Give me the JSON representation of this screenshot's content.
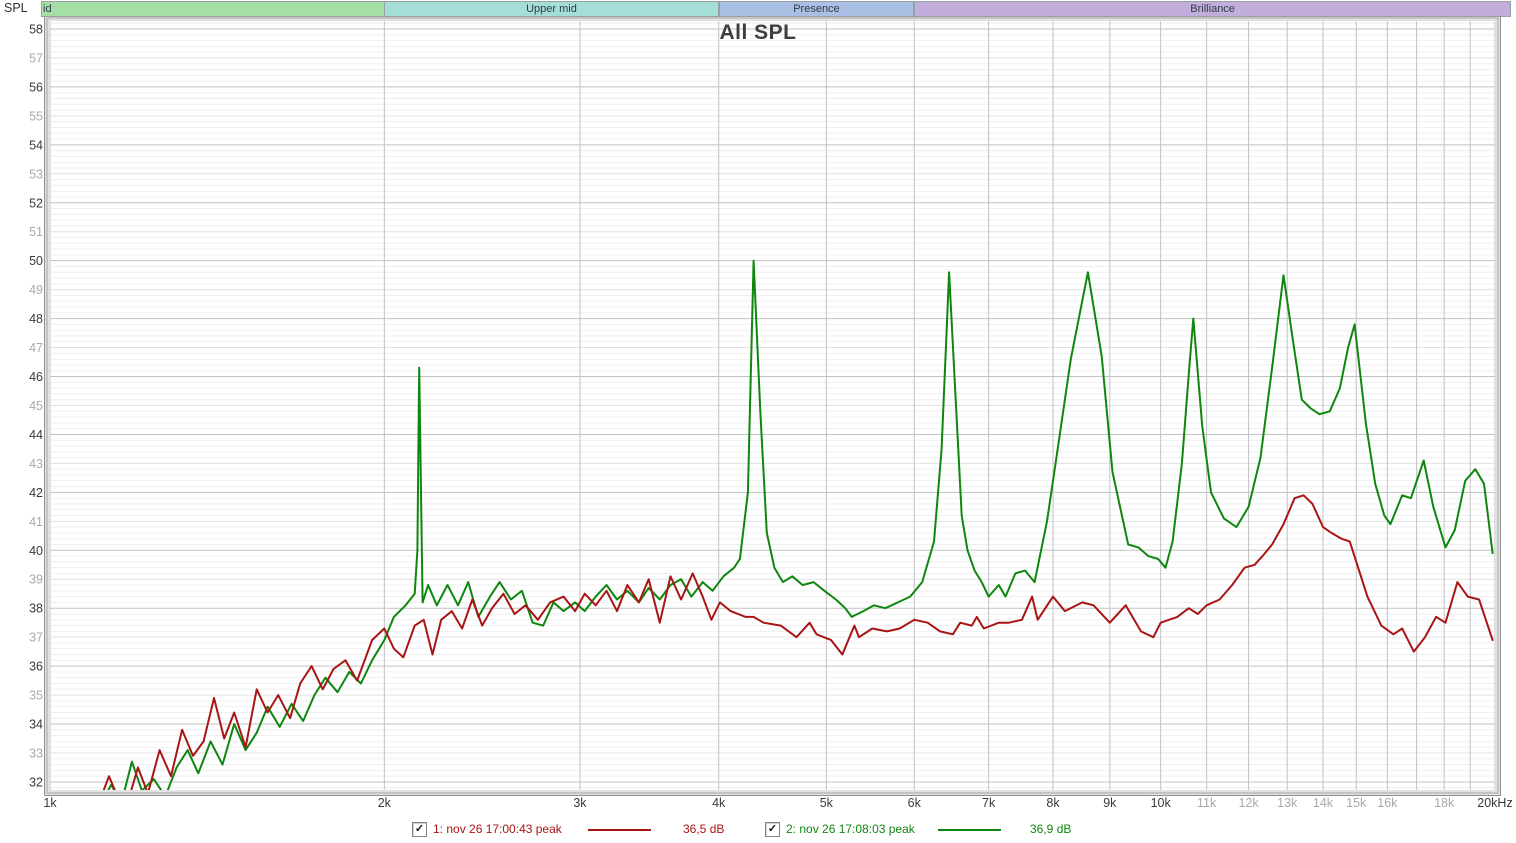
{
  "y_axis_name": "SPL",
  "bands": [
    {
      "label": "id",
      "from_hz": 1000,
      "to_hz": 2000,
      "color": "#a6dfa6",
      "label_align": "left"
    },
    {
      "label": "Upper mid",
      "from_hz": 2000,
      "to_hz": 4000,
      "color": "#a5ded7",
      "label_align": "center"
    },
    {
      "label": "Presence",
      "from_hz": 4000,
      "to_hz": 6000,
      "color": "#a9bfe3",
      "label_align": "center"
    },
    {
      "label": "Brilliance",
      "from_hz": 6000,
      "to_hz": 20000,
      "color": "#c2aedd",
      "label_align": "center"
    }
  ],
  "legend": {
    "check_glyph": "✓",
    "items": [
      {
        "checked": true,
        "label": "1: nov 26 17:00:43 peak",
        "value": "36,5 dB",
        "color": "#a91515"
      },
      {
        "checked": true,
        "label": "2: nov 26 17:08:03 peak",
        "value": "36,9 dB",
        "color": "#0e870e"
      }
    ]
  },
  "chart_data": {
    "type": "line",
    "title": "All SPL",
    "x_scale": "log",
    "x_unit": "Hz",
    "y_unit": "dB SPL",
    "x_range": [
      1000,
      20000
    ],
    "y_range": [
      31.7,
      58.3
    ],
    "grid": {
      "minor_step_db": 0.2,
      "minor_db_color": "#efefef",
      "odd_db_color": "#e0e0e0",
      "even_db_color": "#c2c2c2",
      "vline_color": "#c2c2c2"
    },
    "axis_label_color": "#3a3a3a",
    "axis_label_dim_color": "#a9a9a9",
    "y_ticks_db": {
      "from": 32,
      "to": 58,
      "step": 1
    },
    "x_ticks": [
      {
        "hz": 1000,
        "label": "1k",
        "dim": false
      },
      {
        "hz": 2000,
        "label": "2k",
        "dim": false
      },
      {
        "hz": 3000,
        "label": "3k",
        "dim": false
      },
      {
        "hz": 4000,
        "label": "4k",
        "dim": false
      },
      {
        "hz": 5000,
        "label": "5k",
        "dim": false
      },
      {
        "hz": 6000,
        "label": "6k",
        "dim": false
      },
      {
        "hz": 7000,
        "label": "7k",
        "dim": false
      },
      {
        "hz": 8000,
        "label": "8k",
        "dim": false
      },
      {
        "hz": 9000,
        "label": "9k",
        "dim": false
      },
      {
        "hz": 10000,
        "label": "10k",
        "dim": false
      },
      {
        "hz": 11000,
        "label": "11k",
        "dim": true
      },
      {
        "hz": 12000,
        "label": "12k",
        "dim": true
      },
      {
        "hz": 13000,
        "label": "13k",
        "dim": true
      },
      {
        "hz": 14000,
        "label": "14k",
        "dim": true
      },
      {
        "hz": 15000,
        "label": "15k",
        "dim": true
      },
      {
        "hz": 16000,
        "label": "16k",
        "dim": true
      },
      {
        "hz": 17000,
        "label": "",
        "dim": true
      },
      {
        "hz": 18000,
        "label": "18k",
        "dim": true
      },
      {
        "hz": 19000,
        "label": "",
        "dim": true
      },
      {
        "hz": 20000,
        "label": "20kHz",
        "dim": false
      }
    ],
    "series": [
      {
        "name": "1: nov 26 17:00:43 peak",
        "color": "#a91515",
        "points": [
          [
            1110,
            31.4
          ],
          [
            1130,
            32.2
          ],
          [
            1150,
            31.5
          ],
          [
            1175,
            31.3
          ],
          [
            1200,
            32.5
          ],
          [
            1225,
            31.6
          ],
          [
            1255,
            33.1
          ],
          [
            1285,
            32.2
          ],
          [
            1315,
            33.8
          ],
          [
            1345,
            32.9
          ],
          [
            1375,
            33.4
          ],
          [
            1405,
            34.9
          ],
          [
            1435,
            33.5
          ],
          [
            1465,
            34.4
          ],
          [
            1500,
            33.2
          ],
          [
            1535,
            35.2
          ],
          [
            1570,
            34.4
          ],
          [
            1605,
            35.0
          ],
          [
            1645,
            34.2
          ],
          [
            1680,
            35.4
          ],
          [
            1720,
            36.0
          ],
          [
            1760,
            35.2
          ],
          [
            1800,
            35.9
          ],
          [
            1845,
            36.2
          ],
          [
            1890,
            35.5
          ],
          [
            1950,
            36.9
          ],
          [
            2000,
            37.3
          ],
          [
            2040,
            36.6
          ],
          [
            2080,
            36.3
          ],
          [
            2130,
            37.4
          ],
          [
            2170,
            37.6
          ],
          [
            2210,
            36.4
          ],
          [
            2250,
            37.6
          ],
          [
            2300,
            37.9
          ],
          [
            2350,
            37.3
          ],
          [
            2400,
            38.3
          ],
          [
            2450,
            37.4
          ],
          [
            2500,
            38.0
          ],
          [
            2560,
            38.5
          ],
          [
            2620,
            37.8
          ],
          [
            2680,
            38.1
          ],
          [
            2750,
            37.6
          ],
          [
            2820,
            38.2
          ],
          [
            2900,
            38.4
          ],
          [
            2970,
            37.9
          ],
          [
            3030,
            38.5
          ],
          [
            3100,
            38.1
          ],
          [
            3170,
            38.6
          ],
          [
            3240,
            37.9
          ],
          [
            3310,
            38.8
          ],
          [
            3390,
            38.2
          ],
          [
            3460,
            39.0
          ],
          [
            3540,
            37.5
          ],
          [
            3620,
            39.1
          ],
          [
            3700,
            38.3
          ],
          [
            3790,
            39.2
          ],
          [
            3870,
            38.4
          ],
          [
            3940,
            37.6
          ],
          [
            4010,
            38.2
          ],
          [
            4100,
            37.9
          ],
          [
            4230,
            37.7
          ],
          [
            4300,
            37.7
          ],
          [
            4390,
            37.5
          ],
          [
            4550,
            37.4
          ],
          [
            4700,
            37.0
          ],
          [
            4830,
            37.5
          ],
          [
            4900,
            37.1
          ],
          [
            5050,
            36.9
          ],
          [
            5170,
            36.4
          ],
          [
            5220,
            36.8
          ],
          [
            5300,
            37.4
          ],
          [
            5350,
            37.0
          ],
          [
            5500,
            37.3
          ],
          [
            5670,
            37.2
          ],
          [
            5820,
            37.3
          ],
          [
            6000,
            37.6
          ],
          [
            6170,
            37.5
          ],
          [
            6330,
            37.2
          ],
          [
            6500,
            37.1
          ],
          [
            6600,
            37.5
          ],
          [
            6760,
            37.4
          ],
          [
            6830,
            37.7
          ],
          [
            6930,
            37.3
          ],
          [
            7150,
            37.5
          ],
          [
            7300,
            37.5
          ],
          [
            7500,
            37.6
          ],
          [
            7660,
            38.4
          ],
          [
            7750,
            37.6
          ],
          [
            8000,
            38.4
          ],
          [
            8200,
            37.9
          ],
          [
            8500,
            38.2
          ],
          [
            8700,
            38.1
          ],
          [
            9000,
            37.5
          ],
          [
            9300,
            38.1
          ],
          [
            9600,
            37.2
          ],
          [
            9850,
            37.0
          ],
          [
            10000,
            37.5
          ],
          [
            10350,
            37.7
          ],
          [
            10600,
            38.0
          ],
          [
            10800,
            37.8
          ],
          [
            11000,
            38.1
          ],
          [
            11300,
            38.3
          ],
          [
            11600,
            38.8
          ],
          [
            11900,
            39.4
          ],
          [
            12150,
            39.5
          ],
          [
            12350,
            39.8
          ],
          [
            12600,
            40.2
          ],
          [
            12900,
            40.9
          ],
          [
            13200,
            41.8
          ],
          [
            13450,
            41.9
          ],
          [
            13700,
            41.6
          ],
          [
            14000,
            40.8
          ],
          [
            14250,
            40.6
          ],
          [
            14550,
            40.4
          ],
          [
            14800,
            40.3
          ],
          [
            15350,
            38.4
          ],
          [
            15800,
            37.4
          ],
          [
            16200,
            37.1
          ],
          [
            16500,
            37.3
          ],
          [
            16900,
            36.5
          ],
          [
            17300,
            37.0
          ],
          [
            17700,
            37.7
          ],
          [
            18050,
            37.5
          ],
          [
            18500,
            38.9
          ],
          [
            18900,
            38.4
          ],
          [
            19350,
            38.3
          ],
          [
            19900,
            36.9
          ]
        ]
      },
      {
        "name": "2: nov 26 17:08:03 peak",
        "color": "#0e870e",
        "points": [
          [
            1110,
            31.2
          ],
          [
            1135,
            31.9
          ],
          [
            1160,
            31.3
          ],
          [
            1185,
            32.7
          ],
          [
            1210,
            31.7
          ],
          [
            1240,
            32.1
          ],
          [
            1270,
            31.5
          ],
          [
            1300,
            32.5
          ],
          [
            1330,
            33.1
          ],
          [
            1360,
            32.3
          ],
          [
            1395,
            33.4
          ],
          [
            1430,
            32.6
          ],
          [
            1465,
            34.0
          ],
          [
            1500,
            33.1
          ],
          [
            1535,
            33.7
          ],
          [
            1570,
            34.6
          ],
          [
            1610,
            33.9
          ],
          [
            1650,
            34.7
          ],
          [
            1690,
            34.1
          ],
          [
            1730,
            35.0
          ],
          [
            1770,
            35.6
          ],
          [
            1815,
            35.1
          ],
          [
            1860,
            35.8
          ],
          [
            1905,
            35.4
          ],
          [
            1950,
            36.2
          ],
          [
            2000,
            36.9
          ],
          [
            2040,
            37.7
          ],
          [
            2090,
            38.1
          ],
          [
            2130,
            38.5
          ],
          [
            2142,
            40.0
          ],
          [
            2150,
            46.3
          ],
          [
            2165,
            38.2
          ],
          [
            2190,
            38.8
          ],
          [
            2230,
            38.1
          ],
          [
            2280,
            38.8
          ],
          [
            2330,
            38.1
          ],
          [
            2380,
            38.9
          ],
          [
            2430,
            37.7
          ],
          [
            2490,
            38.4
          ],
          [
            2540,
            38.9
          ],
          [
            2600,
            38.3
          ],
          [
            2660,
            38.6
          ],
          [
            2720,
            37.5
          ],
          [
            2780,
            37.4
          ],
          [
            2840,
            38.2
          ],
          [
            2900,
            37.9
          ],
          [
            2970,
            38.2
          ],
          [
            3030,
            37.9
          ],
          [
            3100,
            38.4
          ],
          [
            3170,
            38.8
          ],
          [
            3240,
            38.3
          ],
          [
            3310,
            38.6
          ],
          [
            3390,
            38.2
          ],
          [
            3460,
            38.7
          ],
          [
            3540,
            38.3
          ],
          [
            3620,
            38.8
          ],
          [
            3700,
            39.0
          ],
          [
            3780,
            38.4
          ],
          [
            3870,
            38.9
          ],
          [
            3950,
            38.6
          ],
          [
            4040,
            39.1
          ],
          [
            4130,
            39.4
          ],
          [
            4180,
            39.7
          ],
          [
            4250,
            42.0
          ],
          [
            4300,
            50.0
          ],
          [
            4360,
            44.8
          ],
          [
            4420,
            40.6
          ],
          [
            4490,
            39.4
          ],
          [
            4570,
            38.9
          ],
          [
            4660,
            39.1
          ],
          [
            4760,
            38.8
          ],
          [
            4870,
            38.9
          ],
          [
            4980,
            38.6
          ],
          [
            5100,
            38.3
          ],
          [
            5200,
            38.0
          ],
          [
            5270,
            37.7
          ],
          [
            5400,
            37.9
          ],
          [
            5520,
            38.1
          ],
          [
            5650,
            38.0
          ],
          [
            5800,
            38.2
          ],
          [
            5950,
            38.4
          ],
          [
            6100,
            38.9
          ],
          [
            6250,
            40.3
          ],
          [
            6350,
            43.5
          ],
          [
            6450,
            49.6
          ],
          [
            6550,
            44.6
          ],
          [
            6620,
            41.2
          ],
          [
            6700,
            40.0
          ],
          [
            6800,
            39.3
          ],
          [
            6900,
            38.9
          ],
          [
            7000,
            38.4
          ],
          [
            7150,
            38.8
          ],
          [
            7250,
            38.4
          ],
          [
            7400,
            39.2
          ],
          [
            7550,
            39.3
          ],
          [
            7700,
            38.9
          ],
          [
            7900,
            41.0
          ],
          [
            8050,
            43.1
          ],
          [
            8300,
            46.6
          ],
          [
            8600,
            49.6
          ],
          [
            8850,
            46.7
          ],
          [
            9050,
            42.7
          ],
          [
            9350,
            40.2
          ],
          [
            9550,
            40.1
          ],
          [
            9750,
            39.8
          ],
          [
            9950,
            39.7
          ],
          [
            10100,
            39.4
          ],
          [
            10250,
            40.3
          ],
          [
            10450,
            43.0
          ],
          [
            10600,
            46.1
          ],
          [
            10700,
            48.0
          ],
          [
            10900,
            44.3
          ],
          [
            11100,
            42.0
          ],
          [
            11400,
            41.1
          ],
          [
            11700,
            40.8
          ],
          [
            12000,
            41.5
          ],
          [
            12300,
            43.2
          ],
          [
            12600,
            46.3
          ],
          [
            12900,
            49.5
          ],
          [
            13150,
            47.3
          ],
          [
            13400,
            45.2
          ],
          [
            13650,
            44.9
          ],
          [
            13900,
            44.7
          ],
          [
            14200,
            44.8
          ],
          [
            14500,
            45.6
          ],
          [
            14750,
            47.0
          ],
          [
            14950,
            47.8
          ],
          [
            15300,
            44.4
          ],
          [
            15600,
            42.3
          ],
          [
            15900,
            41.2
          ],
          [
            16100,
            40.9
          ],
          [
            16500,
            41.9
          ],
          [
            16800,
            41.8
          ],
          [
            17250,
            43.1
          ],
          [
            17600,
            41.5
          ],
          [
            18050,
            40.1
          ],
          [
            18400,
            40.7
          ],
          [
            18800,
            42.4
          ],
          [
            19200,
            42.8
          ],
          [
            19550,
            42.3
          ],
          [
            19900,
            39.9
          ]
        ]
      }
    ]
  }
}
